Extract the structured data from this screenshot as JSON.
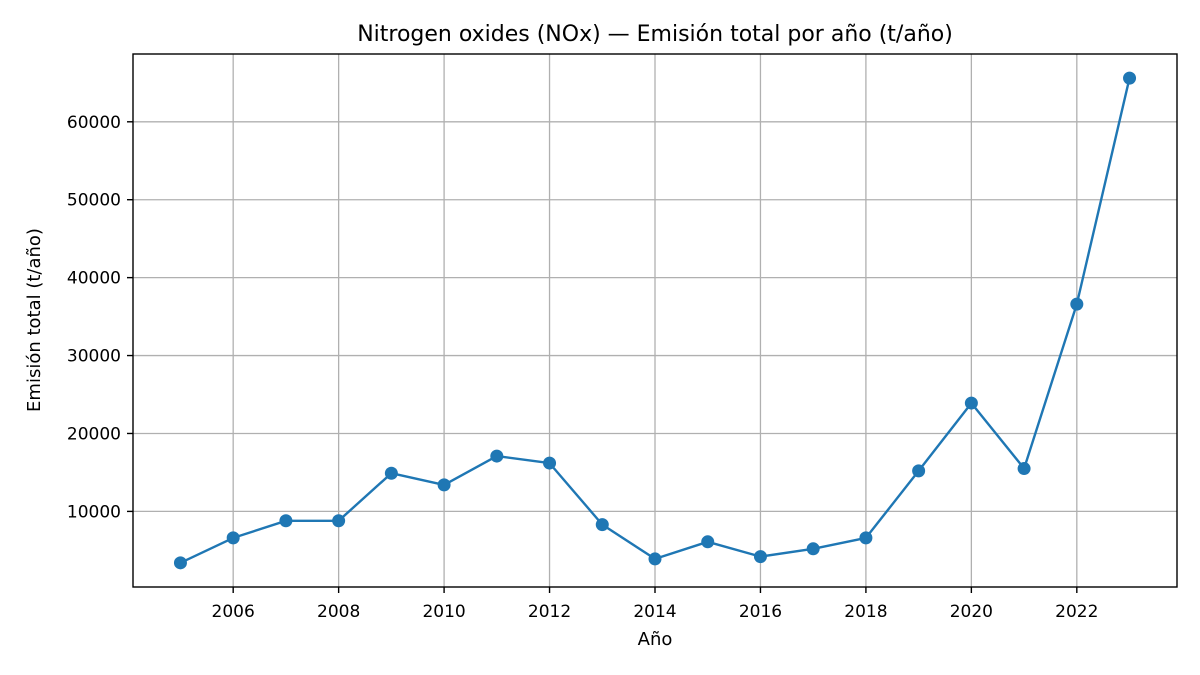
{
  "chart_data": {
    "type": "line",
    "title": "Nitrogen oxides (NOx) — Emisión total por año (t/año)",
    "xlabel": "Año",
    "ylabel": "Emisión total (t/año)",
    "x": [
      2005,
      2006,
      2007,
      2008,
      2009,
      2010,
      2011,
      2012,
      2013,
      2014,
      2015,
      2016,
      2017,
      2018,
      2019,
      2020,
      2021,
      2022,
      2023
    ],
    "series": [
      {
        "values": [
          3400,
          6600,
          8800,
          8800,
          14900,
          13400,
          17100,
          16200,
          8300,
          3900,
          6100,
          4200,
          5200,
          6600,
          15200,
          23900,
          15500,
          36600,
          65600
        ],
        "color": "#1f77b4"
      }
    ],
    "xticks": [
      2006,
      2008,
      2010,
      2012,
      2014,
      2016,
      2018,
      2020,
      2022
    ],
    "yticks": [
      10000,
      20000,
      30000,
      40000,
      50000,
      60000
    ],
    "xlim": [
      2004.1,
      2023.9
    ],
    "ylim": [
      298,
      68700
    ],
    "grid": true
  }
}
